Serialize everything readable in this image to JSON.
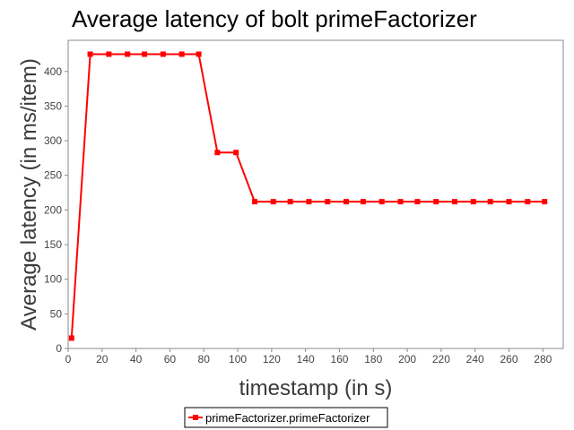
{
  "chart_data": {
    "type": "line",
    "title": "Average latency of bolt primeFactorizer",
    "xlabel": "timestamp (in s)",
    "ylabel": "Average latency (in ms/item)",
    "xlim": [
      0,
      292
    ],
    "ylim": [
      0,
      445
    ],
    "xticks": [
      0,
      20,
      40,
      60,
      80,
      100,
      120,
      140,
      160,
      180,
      200,
      220,
      240,
      260,
      280
    ],
    "yticks": [
      0,
      50,
      100,
      150,
      200,
      250,
      300,
      350,
      400
    ],
    "grid": false,
    "legend_position": "bottom-center",
    "series": [
      {
        "name": "primeFactorizer.primeFactorizer",
        "color": "#ff0000",
        "marker": "square",
        "x": [
          2,
          13,
          24,
          35,
          45,
          56,
          67,
          77,
          88,
          99,
          110,
          121,
          131,
          142,
          153,
          164,
          174,
          185,
          196,
          206,
          217,
          228,
          239,
          249,
          260,
          271,
          281
        ],
        "y": [
          15,
          425,
          425,
          425,
          425,
          425,
          425,
          425,
          283,
          283,
          212,
          212,
          212,
          212,
          212,
          212,
          212,
          212,
          212,
          212,
          212,
          212,
          212,
          212,
          212,
          212,
          212
        ]
      }
    ]
  }
}
